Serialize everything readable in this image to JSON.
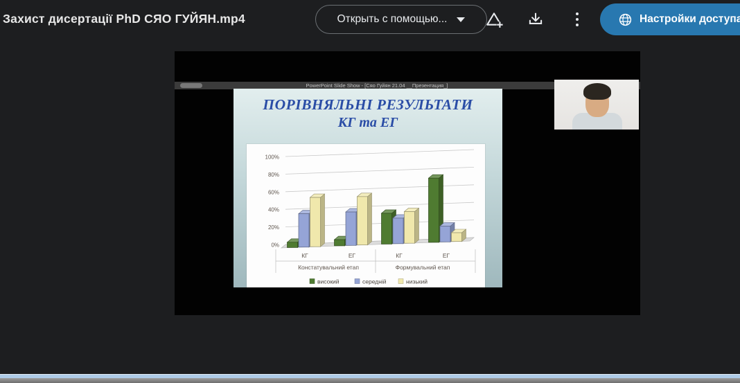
{
  "header": {
    "title": "Захист дисертації PhD СЯО ГУЙЯН.mp4",
    "open_with_label": "Открыть с помощью...",
    "share_button_label": "Настройки доступа",
    "icons": [
      "chevron-down-icon",
      "add-shortcut-icon",
      "download-icon",
      "more-options-icon",
      "globe-icon"
    ]
  },
  "video": {
    "ppt_titlebar_text": "PowerPoint Slide Show - [Сяо Гуйян 21.04 __Презентация_]",
    "slide": {
      "title_line1": "ПОРІВНЯЛЬНІ РЕЗУЛЬТАТИ",
      "title_line2": "КГ та ЕГ"
    }
  },
  "chart_data": {
    "type": "bar",
    "style": "3d-clustered-column",
    "title": "ПОРІВНЯЛЬНІ РЕЗУЛЬТАТИ КГ та ЕГ",
    "categories": [
      "КГ",
      "ЕГ",
      "КГ",
      "ЕГ"
    ],
    "category_groups": [
      "Констатувальний етап",
      "Формувальний етап"
    ],
    "series": [
      {
        "name": "високий",
        "color": "#4f7b31",
        "values": [
          6,
          7,
          35,
          73
        ]
      },
      {
        "name": "середній",
        "color": "#95a4d6",
        "values": [
          38,
          38,
          29,
          18
        ]
      },
      {
        "name": "низький",
        "color": "#f0e8ac",
        "values": [
          56,
          55,
          36,
          10
        ]
      }
    ],
    "xlabel": "",
    "ylabel": "",
    "ylim": [
      0,
      100
    ],
    "yticks": [
      "0%",
      "20%",
      "40%",
      "60%",
      "80%",
      "100%"
    ],
    "grid": true,
    "legend_position": "bottom"
  },
  "colors": {
    "page_background": "#1d1e20",
    "accent_blue": "#2878b0",
    "header_text": "#e8e8e8",
    "slide_title_blue": "#2a4da6",
    "chart_axis_text": "#5f564e",
    "gridline": "#c9c9c9",
    "stripe_blue": "#aecbe8",
    "stripe_gray": "#8c8c8c"
  }
}
